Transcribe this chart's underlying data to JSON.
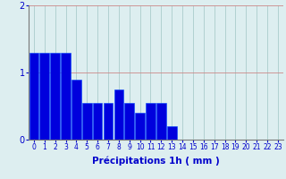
{
  "categories": [
    0,
    1,
    2,
    3,
    4,
    5,
    6,
    7,
    8,
    9,
    10,
    11,
    12,
    13,
    14,
    15,
    16,
    17,
    18,
    19,
    20,
    21,
    22,
    23
  ],
  "values": [
    1.3,
    1.3,
    1.3,
    1.3,
    0.9,
    0.55,
    0.55,
    0.55,
    0.75,
    0.55,
    0.4,
    0.55,
    0.55,
    0.2,
    0.0,
    0.0,
    0.0,
    0.0,
    0.0,
    0.0,
    0.0,
    0.0,
    0.0,
    0.0
  ],
  "bar_color": "#0000dd",
  "bar_edge_color": "#0044ff",
  "background_color": "#ddeef0",
  "grid_color": "#aacccc",
  "grid_color_x": "#cc8888",
  "xlabel": "Précipitations 1h ( mm )",
  "ylim": [
    0,
    2.0
  ],
  "yticks": [
    0,
    1,
    2
  ],
  "xlim": [
    -0.5,
    23.5
  ],
  "xlabel_fontsize": 7.5,
  "tick_fontsize": 5.5,
  "ytick_fontsize": 7,
  "bar_width": 0.9
}
